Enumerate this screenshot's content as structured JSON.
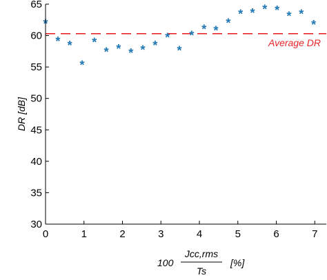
{
  "chart_data": {
    "type": "scatter",
    "title": "",
    "ylabel": "DR [dB]",
    "xlabel": {
      "prefix": "100",
      "numerator": "Jcc,rms",
      "denominator": "Ts",
      "unit": "[%]"
    },
    "xlim": [
      0,
      7.3
    ],
    "ylim": [
      30,
      65
    ],
    "x_ticks": [
      0,
      1,
      2,
      3,
      4,
      5,
      6,
      7
    ],
    "y_ticks": [
      30,
      35,
      40,
      45,
      50,
      55,
      60,
      65
    ],
    "grid": false,
    "series": [
      {
        "marker": "*",
        "color": "#1f77b4",
        "points": [
          [
            0.0,
            62.0
          ],
          [
            0.32,
            59.2
          ],
          [
            0.63,
            58.5
          ],
          [
            0.95,
            55.4
          ],
          [
            1.27,
            59.0
          ],
          [
            1.58,
            57.5
          ],
          [
            1.9,
            58.0
          ],
          [
            2.22,
            57.3
          ],
          [
            2.53,
            57.8
          ],
          [
            2.85,
            58.5
          ],
          [
            3.17,
            59.8
          ],
          [
            3.48,
            57.7
          ],
          [
            3.8,
            60.1
          ],
          [
            4.12,
            61.1
          ],
          [
            4.43,
            60.9
          ],
          [
            4.75,
            62.1
          ],
          [
            5.07,
            63.5
          ],
          [
            5.38,
            63.7
          ],
          [
            5.7,
            64.3
          ],
          [
            6.02,
            64.1
          ],
          [
            6.33,
            63.2
          ],
          [
            6.65,
            63.5
          ],
          [
            6.97,
            61.8
          ]
        ]
      }
    ],
    "reference_lines": [
      {
        "label": "Average DR",
        "y": 60.3,
        "color": "#e8262a",
        "style": "dashed"
      }
    ]
  }
}
